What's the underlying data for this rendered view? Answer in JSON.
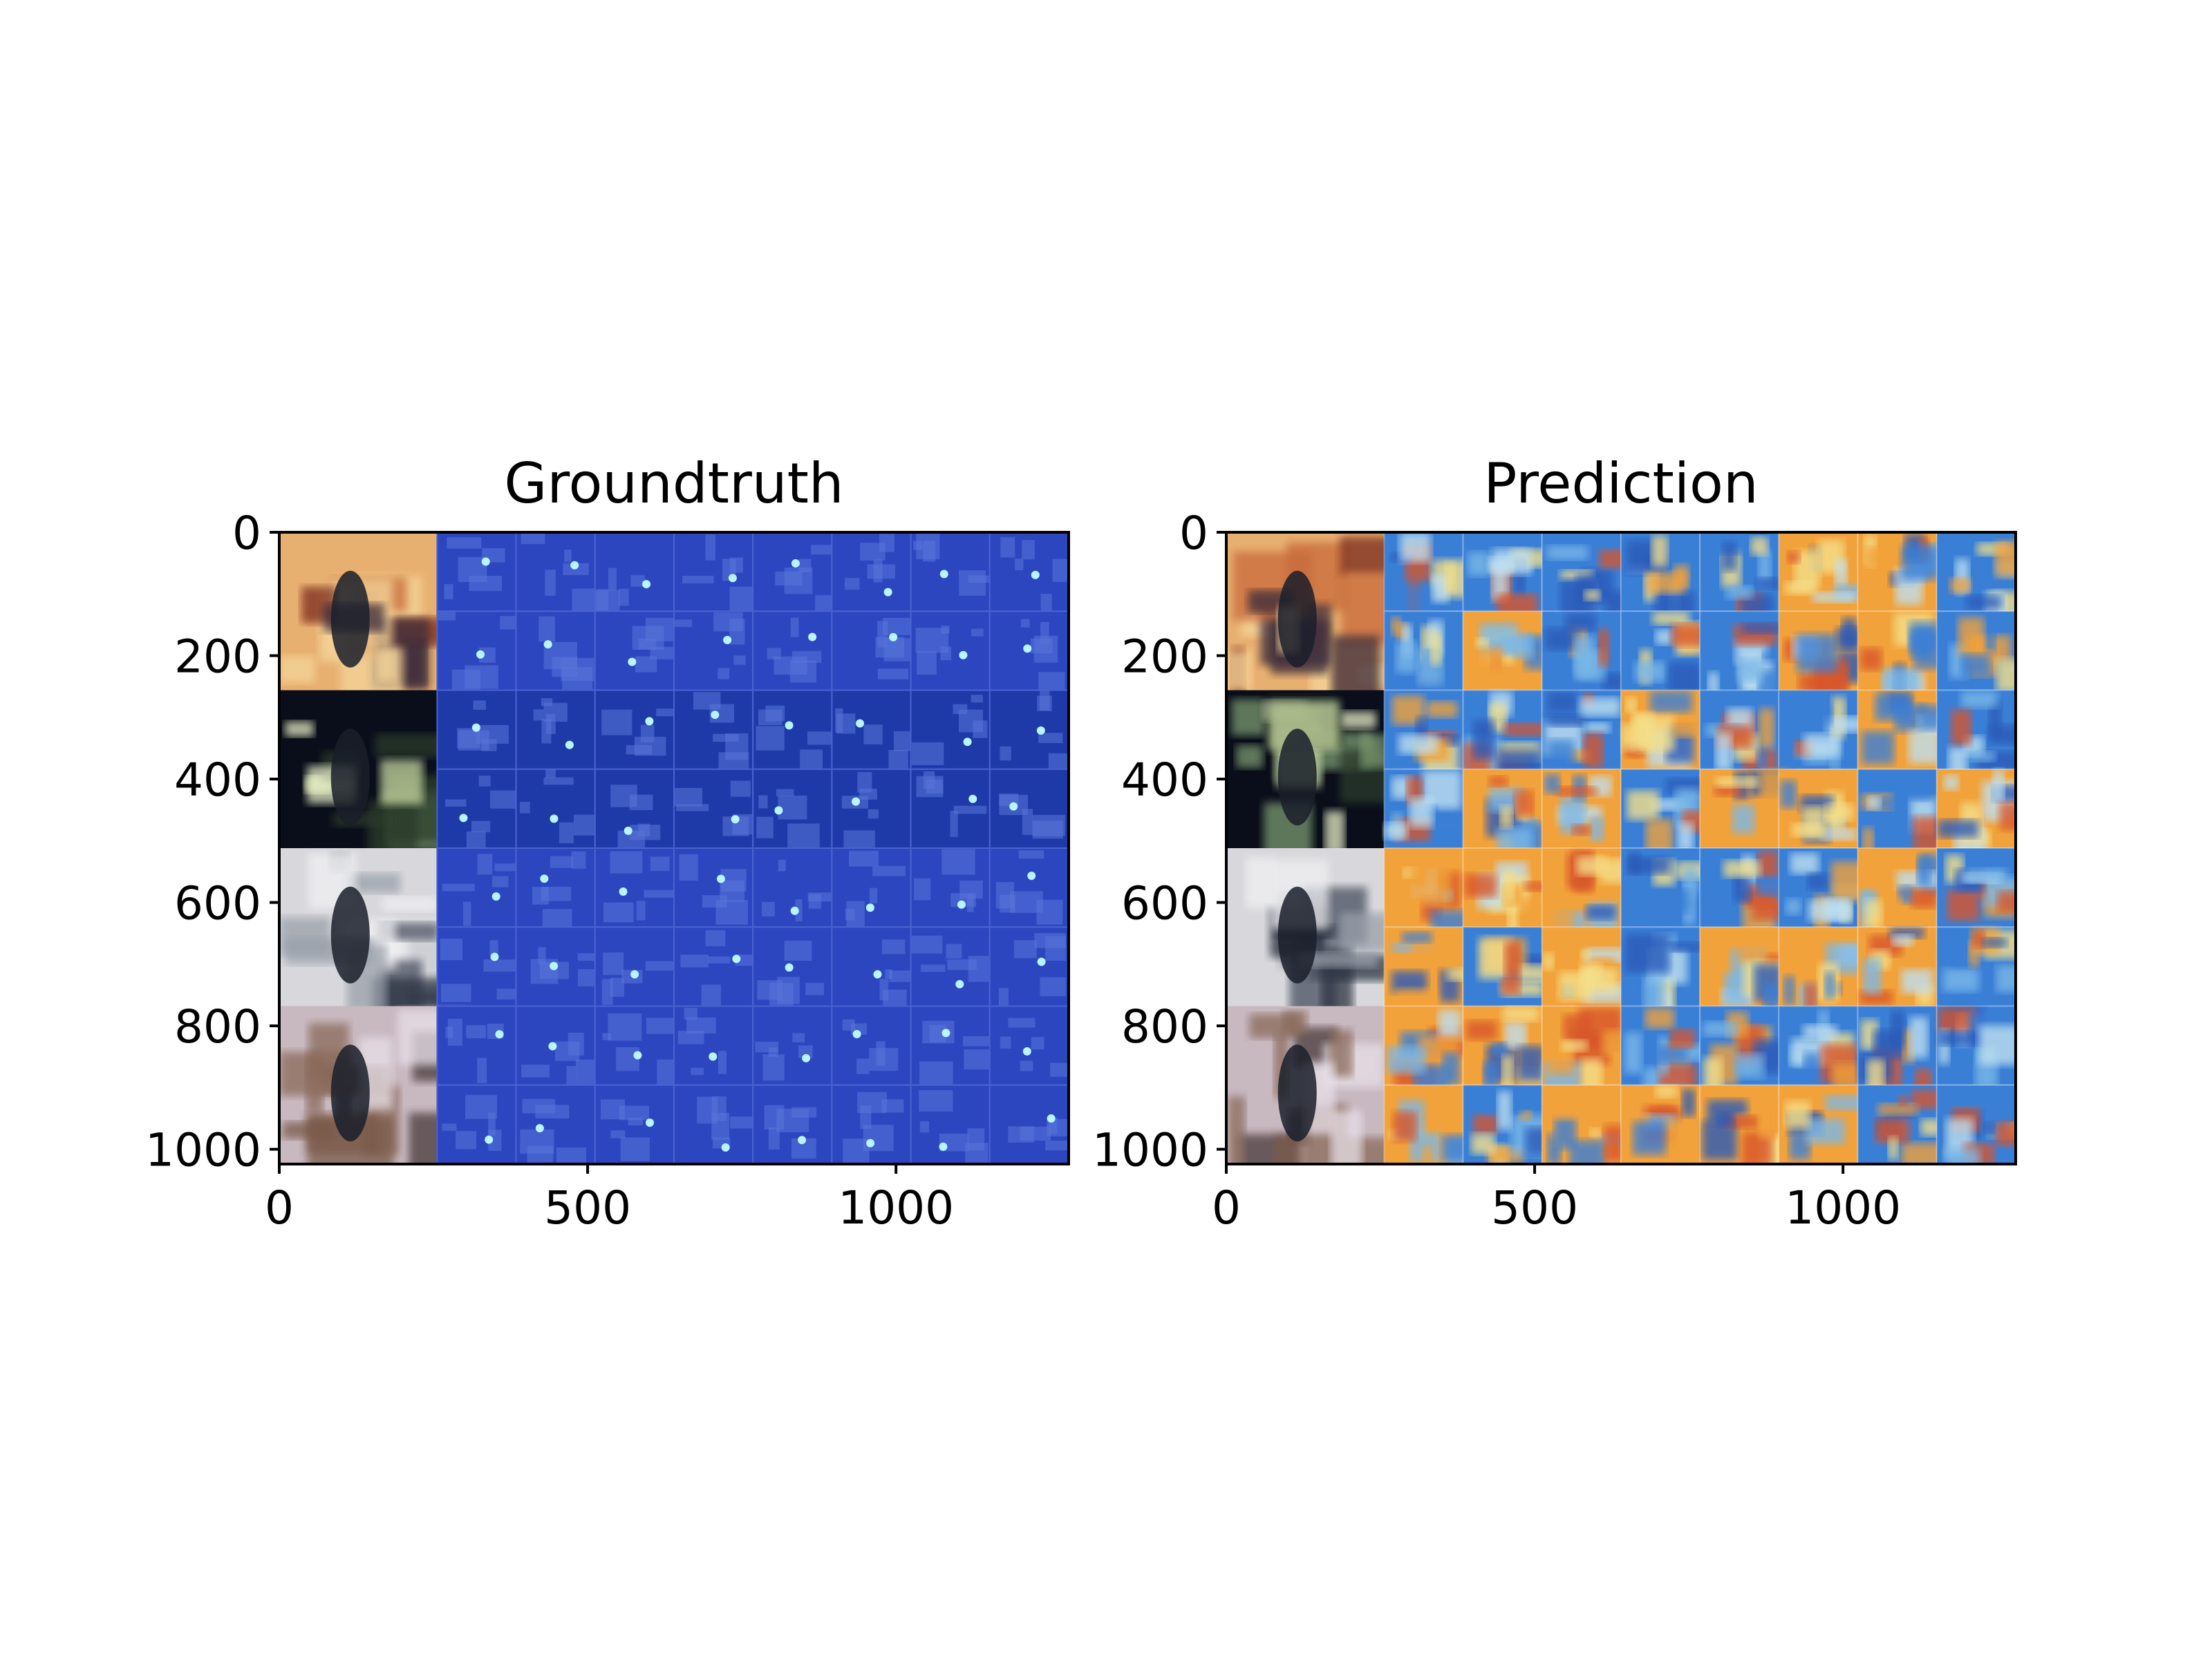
{
  "chart_data": [
    {
      "type": "heatmap",
      "title": "Groundtruth",
      "xlabel": "",
      "ylabel": "",
      "xlim": [
        0,
        1280
      ],
      "ylim": [
        1024,
        0
      ],
      "x_ticks": [
        0,
        500,
        1000
      ],
      "y_ticks": [
        0,
        200,
        400,
        600,
        800,
        1000
      ],
      "x_tick_labels": [
        "0",
        "500",
        "1000"
      ],
      "y_tick_labels": [
        "0",
        "200",
        "400",
        "600",
        "800",
        "1000"
      ],
      "grid": false,
      "image_rows": 4,
      "heatmap_columns": 8,
      "colormap": "blue",
      "colors": {
        "base": "#2a40b8",
        "hot": "#b9f5ff"
      }
    },
    {
      "type": "heatmap",
      "title": "Prediction",
      "xlabel": "",
      "ylabel": "",
      "xlim": [
        0,
        1280
      ],
      "ylim": [
        1024,
        0
      ],
      "x_ticks": [
        0,
        500,
        1000
      ],
      "y_ticks": [
        0,
        200,
        400,
        600,
        800,
        1000
      ],
      "x_tick_labels": [
        "0",
        "500",
        "1000"
      ],
      "y_tick_labels": [
        "0",
        "200",
        "400",
        "600",
        "800",
        "1000"
      ],
      "grid": false,
      "image_rows": 4,
      "heatmap_columns": 8,
      "colormap": "jet",
      "colors": {
        "cool": "#3a7fd6",
        "warm": "#f2a23a",
        "hot": "#d8552a"
      }
    }
  ]
}
